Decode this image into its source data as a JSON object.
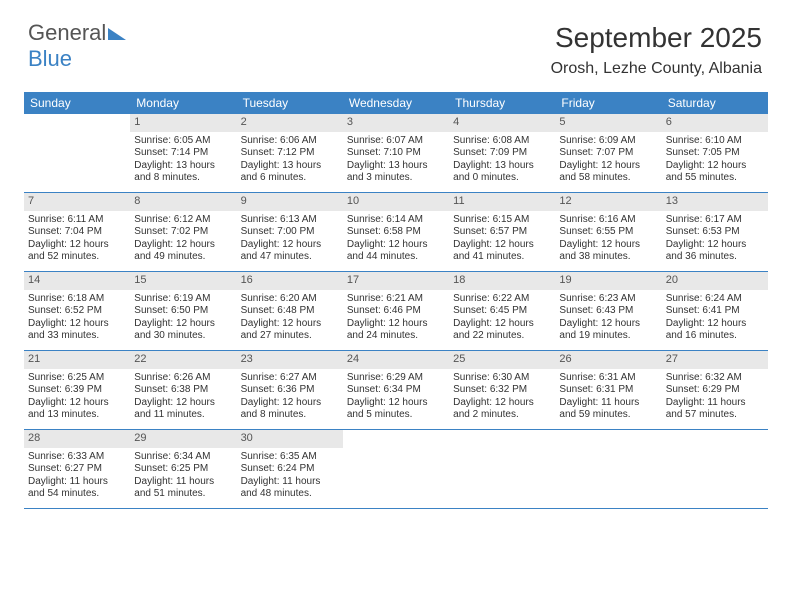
{
  "brand": {
    "part1": "General",
    "part2": "Blue"
  },
  "title": "September 2025",
  "location": "Orosh, Lezhe County, Albania",
  "colors": {
    "header_bg": "#3b82c4",
    "header_fg": "#ffffff",
    "daynum_bg": "#e8e8e8",
    "rule": "#3b82c4",
    "text": "#333333"
  },
  "day_headers": [
    "Sunday",
    "Monday",
    "Tuesday",
    "Wednesday",
    "Thursday",
    "Friday",
    "Saturday"
  ],
  "weeks": [
    [
      {
        "num": "",
        "empty": true
      },
      {
        "num": "1",
        "sunrise": "Sunrise: 6:05 AM",
        "sunset": "Sunset: 7:14 PM",
        "daylight": "Daylight: 13 hours and 8 minutes."
      },
      {
        "num": "2",
        "sunrise": "Sunrise: 6:06 AM",
        "sunset": "Sunset: 7:12 PM",
        "daylight": "Daylight: 13 hours and 6 minutes."
      },
      {
        "num": "3",
        "sunrise": "Sunrise: 6:07 AM",
        "sunset": "Sunset: 7:10 PM",
        "daylight": "Daylight: 13 hours and 3 minutes."
      },
      {
        "num": "4",
        "sunrise": "Sunrise: 6:08 AM",
        "sunset": "Sunset: 7:09 PM",
        "daylight": "Daylight: 13 hours and 0 minutes."
      },
      {
        "num": "5",
        "sunrise": "Sunrise: 6:09 AM",
        "sunset": "Sunset: 7:07 PM",
        "daylight": "Daylight: 12 hours and 58 minutes."
      },
      {
        "num": "6",
        "sunrise": "Sunrise: 6:10 AM",
        "sunset": "Sunset: 7:05 PM",
        "daylight": "Daylight: 12 hours and 55 minutes."
      }
    ],
    [
      {
        "num": "7",
        "sunrise": "Sunrise: 6:11 AM",
        "sunset": "Sunset: 7:04 PM",
        "daylight": "Daylight: 12 hours and 52 minutes."
      },
      {
        "num": "8",
        "sunrise": "Sunrise: 6:12 AM",
        "sunset": "Sunset: 7:02 PM",
        "daylight": "Daylight: 12 hours and 49 minutes."
      },
      {
        "num": "9",
        "sunrise": "Sunrise: 6:13 AM",
        "sunset": "Sunset: 7:00 PM",
        "daylight": "Daylight: 12 hours and 47 minutes."
      },
      {
        "num": "10",
        "sunrise": "Sunrise: 6:14 AM",
        "sunset": "Sunset: 6:58 PM",
        "daylight": "Daylight: 12 hours and 44 minutes."
      },
      {
        "num": "11",
        "sunrise": "Sunrise: 6:15 AM",
        "sunset": "Sunset: 6:57 PM",
        "daylight": "Daylight: 12 hours and 41 minutes."
      },
      {
        "num": "12",
        "sunrise": "Sunrise: 6:16 AM",
        "sunset": "Sunset: 6:55 PM",
        "daylight": "Daylight: 12 hours and 38 minutes."
      },
      {
        "num": "13",
        "sunrise": "Sunrise: 6:17 AM",
        "sunset": "Sunset: 6:53 PM",
        "daylight": "Daylight: 12 hours and 36 minutes."
      }
    ],
    [
      {
        "num": "14",
        "sunrise": "Sunrise: 6:18 AM",
        "sunset": "Sunset: 6:52 PM",
        "daylight": "Daylight: 12 hours and 33 minutes."
      },
      {
        "num": "15",
        "sunrise": "Sunrise: 6:19 AM",
        "sunset": "Sunset: 6:50 PM",
        "daylight": "Daylight: 12 hours and 30 minutes."
      },
      {
        "num": "16",
        "sunrise": "Sunrise: 6:20 AM",
        "sunset": "Sunset: 6:48 PM",
        "daylight": "Daylight: 12 hours and 27 minutes."
      },
      {
        "num": "17",
        "sunrise": "Sunrise: 6:21 AM",
        "sunset": "Sunset: 6:46 PM",
        "daylight": "Daylight: 12 hours and 24 minutes."
      },
      {
        "num": "18",
        "sunrise": "Sunrise: 6:22 AM",
        "sunset": "Sunset: 6:45 PM",
        "daylight": "Daylight: 12 hours and 22 minutes."
      },
      {
        "num": "19",
        "sunrise": "Sunrise: 6:23 AM",
        "sunset": "Sunset: 6:43 PM",
        "daylight": "Daylight: 12 hours and 19 minutes."
      },
      {
        "num": "20",
        "sunrise": "Sunrise: 6:24 AM",
        "sunset": "Sunset: 6:41 PM",
        "daylight": "Daylight: 12 hours and 16 minutes."
      }
    ],
    [
      {
        "num": "21",
        "sunrise": "Sunrise: 6:25 AM",
        "sunset": "Sunset: 6:39 PM",
        "daylight": "Daylight: 12 hours and 13 minutes."
      },
      {
        "num": "22",
        "sunrise": "Sunrise: 6:26 AM",
        "sunset": "Sunset: 6:38 PM",
        "daylight": "Daylight: 12 hours and 11 minutes."
      },
      {
        "num": "23",
        "sunrise": "Sunrise: 6:27 AM",
        "sunset": "Sunset: 6:36 PM",
        "daylight": "Daylight: 12 hours and 8 minutes."
      },
      {
        "num": "24",
        "sunrise": "Sunrise: 6:29 AM",
        "sunset": "Sunset: 6:34 PM",
        "daylight": "Daylight: 12 hours and 5 minutes."
      },
      {
        "num": "25",
        "sunrise": "Sunrise: 6:30 AM",
        "sunset": "Sunset: 6:32 PM",
        "daylight": "Daylight: 12 hours and 2 minutes."
      },
      {
        "num": "26",
        "sunrise": "Sunrise: 6:31 AM",
        "sunset": "Sunset: 6:31 PM",
        "daylight": "Daylight: 11 hours and 59 minutes."
      },
      {
        "num": "27",
        "sunrise": "Sunrise: 6:32 AM",
        "sunset": "Sunset: 6:29 PM",
        "daylight": "Daylight: 11 hours and 57 minutes."
      }
    ],
    [
      {
        "num": "28",
        "sunrise": "Sunrise: 6:33 AM",
        "sunset": "Sunset: 6:27 PM",
        "daylight": "Daylight: 11 hours and 54 minutes."
      },
      {
        "num": "29",
        "sunrise": "Sunrise: 6:34 AM",
        "sunset": "Sunset: 6:25 PM",
        "daylight": "Daylight: 11 hours and 51 minutes."
      },
      {
        "num": "30",
        "sunrise": "Sunrise: 6:35 AM",
        "sunset": "Sunset: 6:24 PM",
        "daylight": "Daylight: 11 hours and 48 minutes."
      },
      {
        "num": "",
        "empty": true
      },
      {
        "num": "",
        "empty": true
      },
      {
        "num": "",
        "empty": true
      },
      {
        "num": "",
        "empty": true
      }
    ]
  ]
}
